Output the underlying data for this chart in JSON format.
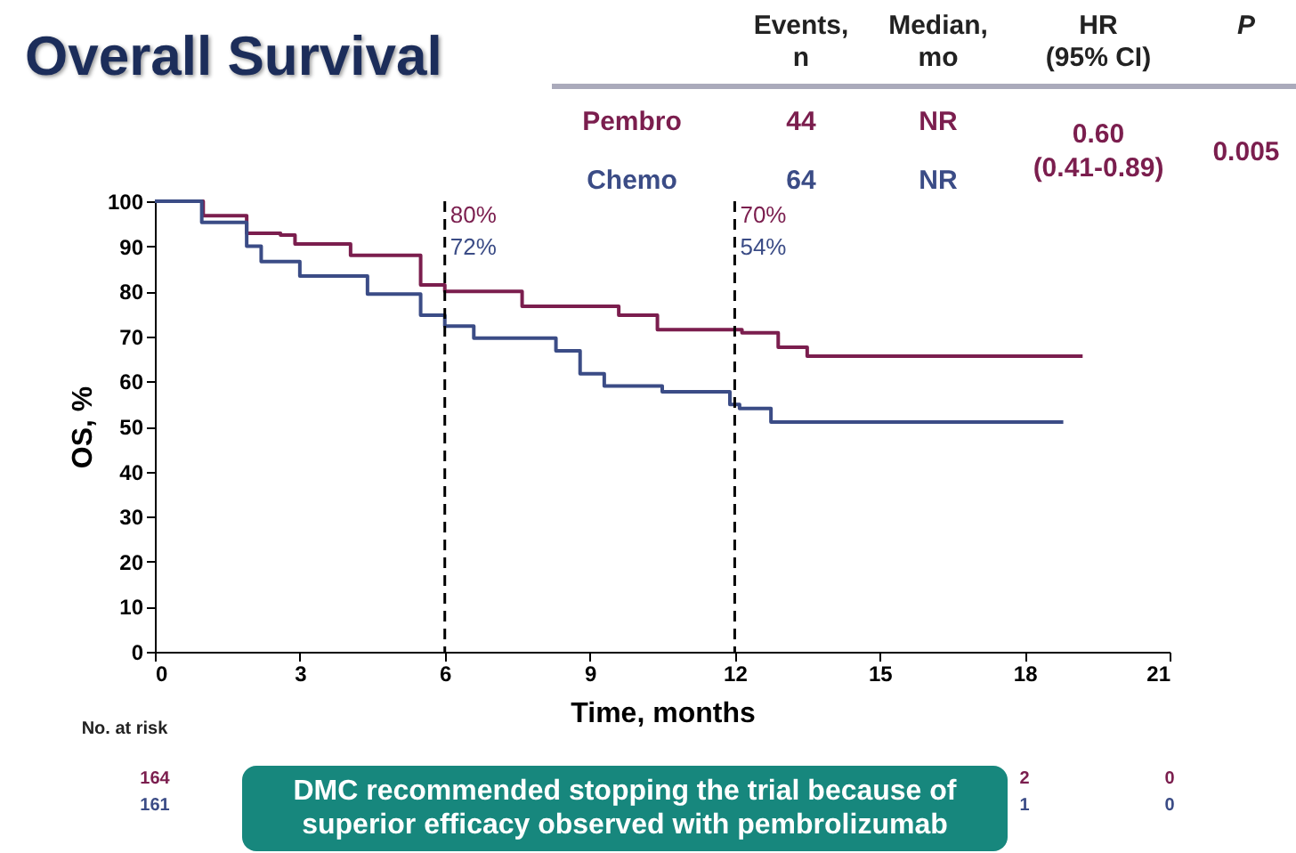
{
  "chart_data": {
    "type": "step",
    "title": "Overall Survival",
    "xlabel": "Time, months",
    "ylabel": "OS, %",
    "xlim": [
      0,
      21
    ],
    "xticks": [
      0,
      3,
      6,
      9,
      12,
      15,
      18,
      21
    ],
    "ylim": [
      0,
      100
    ],
    "yticks": [
      0,
      10,
      20,
      30,
      40,
      50,
      60,
      70,
      80,
      90,
      100
    ],
    "grid": false,
    "marker": "none",
    "line_style": "solid",
    "series": [
      {
        "name": "Pembro",
        "color": "#7b1e4e",
        "x": [
          0,
          1.0,
          1.9,
          2.6,
          2.9,
          4.05,
          5.5,
          6,
          7.6,
          9.6,
          10.4,
          12.15,
          12.9,
          13.5,
          19.2
        ],
        "values": [
          100,
          96.8,
          92.9,
          92.5,
          90.5,
          88,
          81.4,
          80,
          76.7,
          74.7,
          71.5,
          70.8,
          67.6,
          65.6,
          65.6
        ]
      },
      {
        "name": "Chemo",
        "color": "#3b4c86",
        "x": [
          0,
          0.97,
          1.9,
          2.2,
          3.0,
          4.4,
          5.5,
          6,
          6.6,
          8.3,
          8.8,
          9.3,
          10.5,
          11.9,
          12.1,
          12.75,
          18.8
        ],
        "values": [
          100,
          95.3,
          90,
          86.6,
          83.4,
          79.4,
          74.7,
          72.3,
          69.6,
          66.8,
          61.7,
          59,
          57.7,
          54.9,
          54,
          51,
          51
        ]
      }
    ],
    "ref_lines": [
      {
        "axis": "x",
        "value": 6,
        "label": null,
        "line_style": "dashed",
        "color": "#000000"
      },
      {
        "axis": "x",
        "value": 12,
        "label": null,
        "line_style": "dashed",
        "color": "#000000"
      }
    ],
    "annotations": [
      "Events,\nn",
      "Median,\nmo",
      "HR\n(95% CI)",
      "P",
      "44",
      "NR",
      "0.60\n(0.41-0.89)",
      "0.005",
      "64",
      "NR",
      "No. at risk",
      "164",
      "161",
      "2",
      "1",
      "0",
      "0",
      "DMC recommended stopping the trial because of superior efficacy observed with pembrolizumab",
      "80%",
      "72%",
      "70%",
      "54%"
    ]
  }
}
